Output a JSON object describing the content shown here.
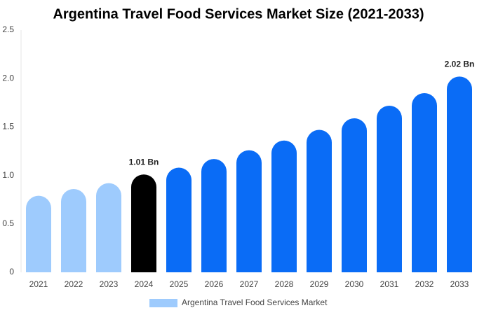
{
  "chart_data": {
    "type": "bar",
    "title": "Argentina Travel Food Services Market Size (2021-2033)",
    "categories": [
      "2021",
      "2022",
      "2023",
      "2024",
      "2025",
      "2026",
      "2027",
      "2028",
      "2029",
      "2030",
      "2031",
      "2032",
      "2033"
    ],
    "series": [
      {
        "name": "Argentina Travel Food Services Market",
        "color": "#9ecbfd",
        "values": [
          0.79,
          0.86,
          0.92,
          1.01,
          1.08,
          1.17,
          1.26,
          1.36,
          1.47,
          1.59,
          1.72,
          1.85,
          2.02
        ],
        "colors": [
          "#9ecbfd",
          "#9ecbfd",
          "#9ecbfd",
          "#000000",
          "#0a6cf6",
          "#0a6cf6",
          "#0a6cf6",
          "#0a6cf6",
          "#0a6cf6",
          "#0a6cf6",
          "#0a6cf6",
          "#0a6cf6",
          "#0a6cf6"
        ],
        "value_labels": [
          null,
          null,
          null,
          "1.01 Bn",
          null,
          null,
          null,
          null,
          null,
          null,
          null,
          null,
          "2.02 Bn"
        ]
      }
    ],
    "ylim": [
      0,
      2.5
    ],
    "yticks": [
      0,
      0.5,
      {
        "value": 1,
        "label": "1.0"
      },
      1.5,
      {
        "value": 2,
        "label": "2.0"
      },
      2.5
    ],
    "grid": false,
    "legend": "bottom"
  }
}
